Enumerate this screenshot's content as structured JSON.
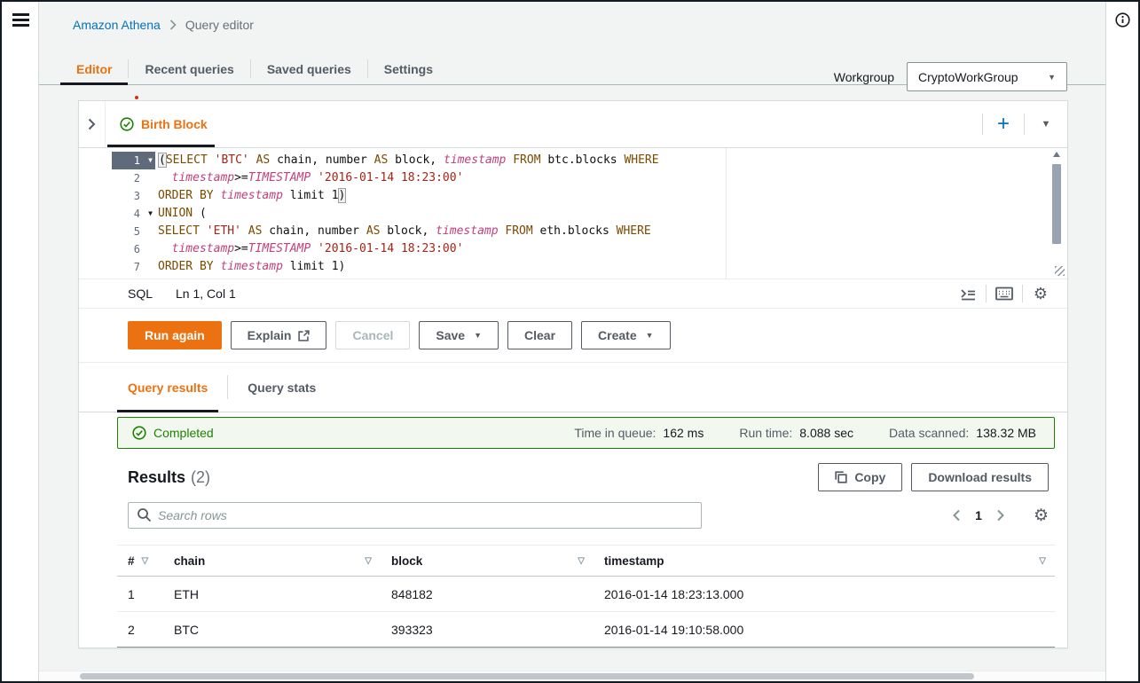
{
  "colors": {
    "accent_orange": "#ec7211",
    "success_green": "#1d8102",
    "link_blue": "#0073bb",
    "active_underline": "#16191f"
  },
  "icons": {
    "add_query": "+",
    "dropdown_caret": "▼",
    "sort_triangle": "▽",
    "fold_triangle": "▼",
    "gear": "⚙"
  },
  "breadcrumb": {
    "root": "Amazon Athena",
    "current": "Query editor"
  },
  "top_tabs": [
    {
      "label": "Editor",
      "active": true
    },
    {
      "label": "Recent queries",
      "active": false
    },
    {
      "label": "Saved queries",
      "active": false
    },
    {
      "label": "Settings",
      "active": false
    }
  ],
  "workgroup": {
    "label": "Workgroup",
    "value": "CryptoWorkGroup"
  },
  "query_tab": {
    "title": "Birth Block"
  },
  "editor": {
    "lines": [
      {
        "num": "1",
        "fold": true,
        "active": true,
        "cursor": true,
        "segments": [
          [
            "(",
            "b"
          ],
          [
            "SELECT",
            "k"
          ],
          [
            " ",
            "p"
          ],
          [
            "'BTC'",
            "s"
          ],
          [
            " ",
            "p"
          ],
          [
            "AS",
            "k"
          ],
          [
            " chain, number ",
            "p"
          ],
          [
            "AS",
            "k"
          ],
          [
            " block, ",
            "p"
          ],
          [
            "timestamp",
            "t"
          ],
          [
            " ",
            "p"
          ],
          [
            "FROM",
            "k"
          ],
          [
            " btc.blocks ",
            "p"
          ],
          [
            "WHERE",
            "k"
          ]
        ]
      },
      {
        "num": "2",
        "segments": [
          [
            "  ",
            "p"
          ],
          [
            "timestamp",
            "t"
          ],
          [
            ">=",
            "p"
          ],
          [
            "TIMESTAMP",
            "t"
          ],
          [
            " ",
            "p"
          ],
          [
            "'2016-01-14 18:23:00'",
            "s"
          ]
        ]
      },
      {
        "num": "3",
        "segments": [
          [
            "ORDER BY",
            "k"
          ],
          [
            " ",
            "p"
          ],
          [
            "timestamp",
            "t"
          ],
          [
            " limit 1",
            "p"
          ],
          [
            ")",
            "b"
          ]
        ]
      },
      {
        "num": "4",
        "fold": true,
        "segments": [
          [
            "UNION",
            "k"
          ],
          [
            " (",
            "p"
          ]
        ]
      },
      {
        "num": "5",
        "segments": [
          [
            "SELECT",
            "k"
          ],
          [
            " ",
            "p"
          ],
          [
            "'ETH'",
            "s"
          ],
          [
            " ",
            "p"
          ],
          [
            "AS",
            "k"
          ],
          [
            " chain, number ",
            "p"
          ],
          [
            "AS",
            "k"
          ],
          [
            " block, ",
            "p"
          ],
          [
            "timestamp",
            "t"
          ],
          [
            " ",
            "p"
          ],
          [
            "FROM",
            "k"
          ],
          [
            " eth.blocks ",
            "p"
          ],
          [
            "WHERE",
            "k"
          ]
        ]
      },
      {
        "num": "6",
        "segments": [
          [
            "  ",
            "p"
          ],
          [
            "timestamp",
            "t"
          ],
          [
            ">=",
            "p"
          ],
          [
            "TIMESTAMP",
            "t"
          ],
          [
            " ",
            "p"
          ],
          [
            "'2016-01-14 18:23:00'",
            "s"
          ]
        ]
      },
      {
        "num": "7",
        "segments": [
          [
            "ORDER BY",
            "k"
          ],
          [
            " ",
            "p"
          ],
          [
            "timestamp",
            "t"
          ],
          [
            " limit 1)",
            "p"
          ]
        ]
      }
    ],
    "status_bar": {
      "language": "SQL",
      "cursor_position": "Ln 1, Col 1"
    }
  },
  "action_buttons": {
    "run": "Run again",
    "explain": "Explain",
    "cancel": "Cancel",
    "save": "Save",
    "clear": "Clear",
    "create": "Create"
  },
  "results_tabs": [
    {
      "label": "Query results",
      "active": true
    },
    {
      "label": "Query stats",
      "active": false
    }
  ],
  "status_banner": {
    "state": "Completed",
    "metrics": [
      {
        "label": "Time in queue:",
        "value": "162 ms"
      },
      {
        "label": "Run time:",
        "value": "8.088 sec"
      },
      {
        "label": "Data scanned:",
        "value": "138.32 MB"
      }
    ]
  },
  "results": {
    "title": "Results",
    "count": "(2)",
    "copy_label": "Copy",
    "download_label": "Download results",
    "search_placeholder": "Search rows",
    "page": "1",
    "table": {
      "columns": [
        "#",
        "chain",
        "block",
        "timestamp"
      ],
      "rows": [
        [
          "1",
          "ETH",
          "848182",
          "2016-01-14 18:23:13.000"
        ],
        [
          "2",
          "BTC",
          "393323",
          "2016-01-14 19:10:58.000"
        ]
      ]
    }
  }
}
